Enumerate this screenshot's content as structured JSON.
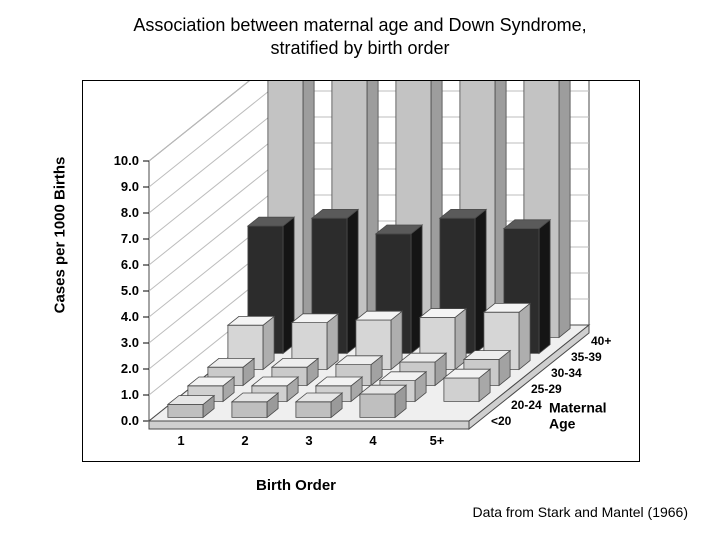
{
  "title_line1": "Association between maternal age and Down Syndrome,",
  "title_line2": "stratified by birth order",
  "caption": "Data from Stark and Mantel (1966)",
  "chart": {
    "type": "3d-bar",
    "y_axis_title": "Cases per 1000 Births",
    "x_axis_title": "Birth Order",
    "depth_axis_title_line1": "Maternal",
    "depth_axis_title_line2": "Age",
    "y_ticks": [
      "0.0",
      "1.0",
      "2.0",
      "3.0",
      "4.0",
      "5.0",
      "6.0",
      "7.0",
      "8.0",
      "9.0",
      "10.0"
    ],
    "ylim_display": [
      0,
      10
    ],
    "x_categories": [
      "1",
      "2",
      "3",
      "4",
      "5+"
    ],
    "depth_categories": [
      "<20",
      "20-24",
      "25-29",
      "30-34",
      "35-39",
      "40+"
    ],
    "series_colors": {
      "<20": {
        "top": "#e6e6e6",
        "front": "#bfbfbf",
        "side": "#9a9a9a"
      },
      "20-24": {
        "top": "#f2f2f2",
        "front": "#d0d0d0",
        "side": "#a8a8a8"
      },
      "25-29": {
        "top": "#eeeeee",
        "front": "#cacaca",
        "side": "#a2a2a2"
      },
      "30-34": {
        "top": "#f4f4f4",
        "front": "#d6d6d6",
        "side": "#aeaeae"
      },
      "35-39": {
        "top": "#5a5a5a",
        "front": "#2c2c2c",
        "side": "#151515"
      },
      "40+": {
        "top": "#eaeaea",
        "front": "#c3c3c3",
        "side": "#9d9d9d"
      }
    },
    "floor_color": "#efefef",
    "floor_side_color": "#cfcfcf",
    "wall_color": "#ffffff",
    "stroke_color": "#4a4a4a",
    "values": {
      "<20": [
        0.5,
        0.6,
        0.6,
        0.9,
        0.0
      ],
      "20-24": [
        0.6,
        0.6,
        0.6,
        0.8,
        0.9
      ],
      "25-29": [
        0.7,
        0.7,
        0.8,
        0.9,
        1.0
      ],
      "30-34": [
        1.7,
        1.8,
        1.9,
        2.0,
        2.2
      ],
      "35-39": [
        4.9,
        5.2,
        4.6,
        5.2,
        4.8
      ],
      "40+": [
        11.6,
        10.6,
        11.4,
        12.0,
        11.4
      ]
    },
    "y_tick_fontsize": 13,
    "x_tick_fontsize": 13,
    "age_label_fontsize": 12,
    "axis_title_fontsize": 15,
    "title_fontsize": 18,
    "caption_fontsize": 14
  }
}
